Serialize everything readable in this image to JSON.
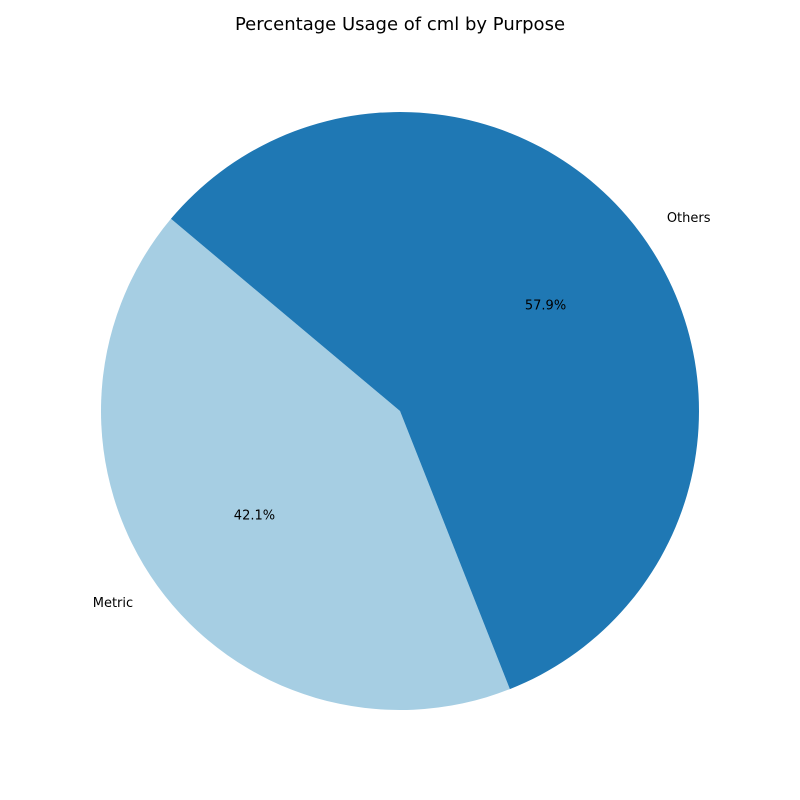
{
  "chart_data": {
    "type": "pie",
    "title": "Percentage Usage of cml by Purpose",
    "start_angle": 140,
    "direction": "counterclockwise",
    "legend": "none",
    "slices": [
      {
        "label": "Metric",
        "value": 42.1,
        "pct_label": "42.1%",
        "color": "#a6cee3"
      },
      {
        "label": "Others",
        "value": 57.9,
        "pct_label": "57.9%",
        "color": "#1f78b4"
      }
    ]
  }
}
